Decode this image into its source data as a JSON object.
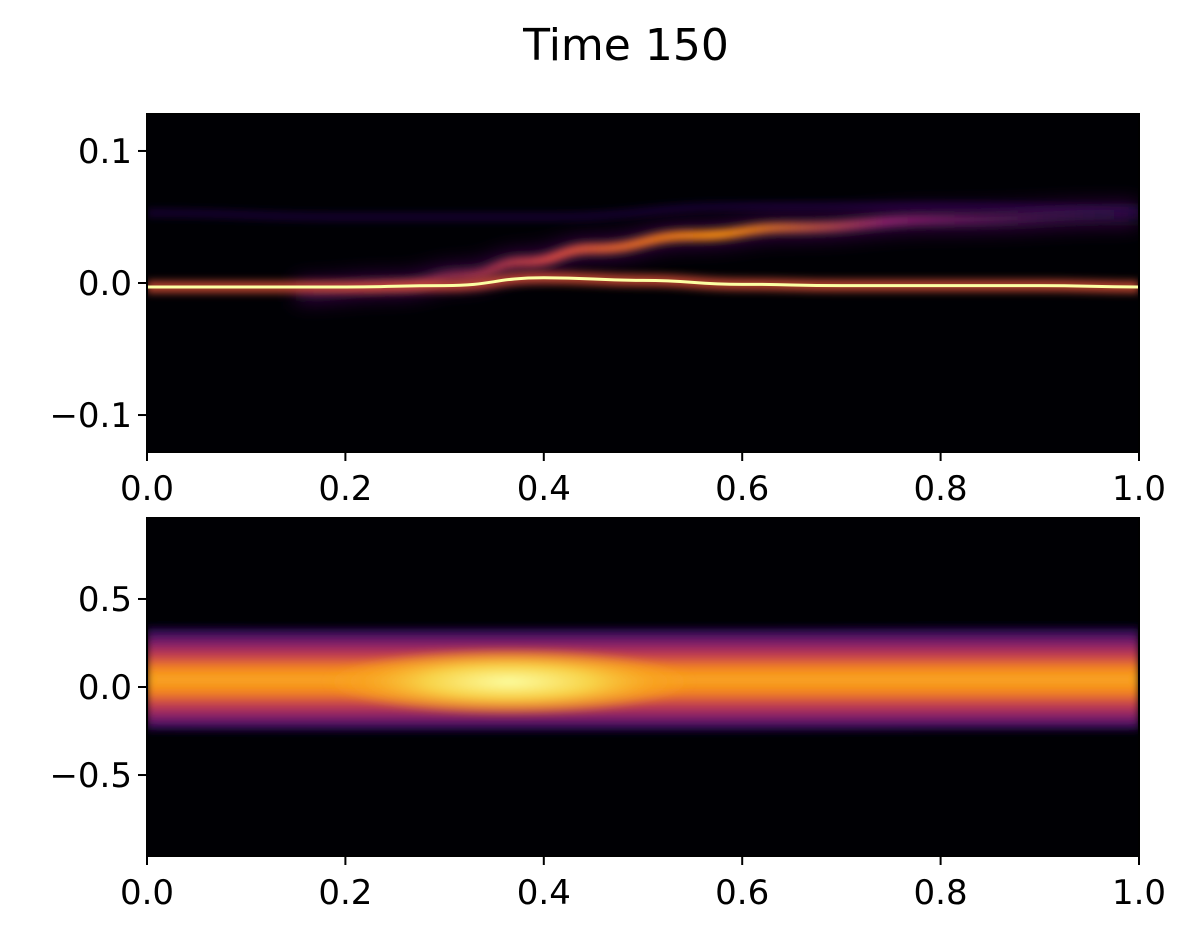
{
  "figure": {
    "title": "Time 150"
  },
  "colors": {
    "background": "#ffffff",
    "colormap": "inferno",
    "axes_frame": "#000000"
  },
  "chart_data": [
    {
      "type": "heatmap",
      "title": "",
      "xlabel": "",
      "ylabel": "",
      "colormap": "inferno",
      "xlim": [
        0.0,
        1.0
      ],
      "ylim": [
        -0.128,
        0.128
      ],
      "x_ticks": [
        0.0,
        0.2,
        0.4,
        0.6,
        0.8,
        1.0
      ],
      "x_tick_labels": [
        "0.0",
        "0.2",
        "0.4",
        "0.6",
        "0.8",
        "1.0"
      ],
      "y_ticks": [
        0.1,
        0.0,
        -0.1
      ],
      "y_tick_labels": [
        "0.1",
        "0.0",
        "−0.1"
      ],
      "grid": false,
      "features": [
        {
          "kind": "ridge",
          "intensity": 1.0,
          "points": [
            [
              0.0,
              -0.003
            ],
            [
              0.1,
              -0.003
            ],
            [
              0.2,
              -0.003
            ],
            [
              0.3,
              -0.002
            ],
            [
              0.4,
              0.004
            ],
            [
              0.5,
              0.002
            ],
            [
              0.6,
              -0.001
            ],
            [
              0.7,
              -0.002
            ],
            [
              0.8,
              -0.002
            ],
            [
              0.9,
              -0.002
            ],
            [
              1.0,
              -0.003
            ]
          ]
        },
        {
          "kind": "plume",
          "intensity": 0.7,
          "points": [
            [
              0.15,
              -0.006
            ],
            [
              0.25,
              -0.002
            ],
            [
              0.32,
              0.006
            ],
            [
              0.38,
              0.016
            ],
            [
              0.45,
              0.026
            ],
            [
              0.55,
              0.036
            ],
            [
              0.65,
              0.042
            ],
            [
              0.8,
              0.048
            ],
            [
              1.0,
              0.052
            ]
          ]
        },
        {
          "kind": "faint_band",
          "intensity": 0.12,
          "points": [
            [
              0.0,
              0.053
            ],
            [
              0.2,
              0.05
            ],
            [
              0.4,
              0.05
            ],
            [
              0.6,
              0.058
            ],
            [
              0.8,
              0.058
            ],
            [
              1.0,
              0.055
            ]
          ]
        }
      ]
    },
    {
      "type": "heatmap",
      "title": "",
      "xlabel": "",
      "ylabel": "",
      "colormap": "inferno",
      "xlim": [
        0.0,
        1.0
      ],
      "ylim": [
        -0.96,
        0.96
      ],
      "x_ticks": [
        0.0,
        0.2,
        0.4,
        0.6,
        0.8,
        1.0
      ],
      "x_tick_labels": [
        "0.0",
        "0.2",
        "0.4",
        "0.6",
        "0.8",
        "1.0"
      ],
      "y_ticks": [
        0.5,
        0.0,
        -0.5
      ],
      "y_tick_labels": [
        "0.5",
        "0.0",
        "−0.5"
      ],
      "grid": false,
      "features": [
        {
          "kind": "band",
          "intensity": 0.78,
          "points": [
            [
              0.0,
              0.05
            ],
            [
              0.2,
              0.04
            ],
            [
              0.4,
              0.04
            ],
            [
              0.6,
              0.04
            ],
            [
              0.8,
              0.05
            ],
            [
              1.0,
              0.05
            ]
          ]
        },
        {
          "kind": "core",
          "intensity": 1.0,
          "points": [
            [
              0.18,
              0.02
            ],
            [
              0.3,
              0.04
            ],
            [
              0.36,
              0.04
            ],
            [
              0.45,
              0.03
            ],
            [
              0.55,
              0.02
            ]
          ]
        }
      ]
    }
  ]
}
